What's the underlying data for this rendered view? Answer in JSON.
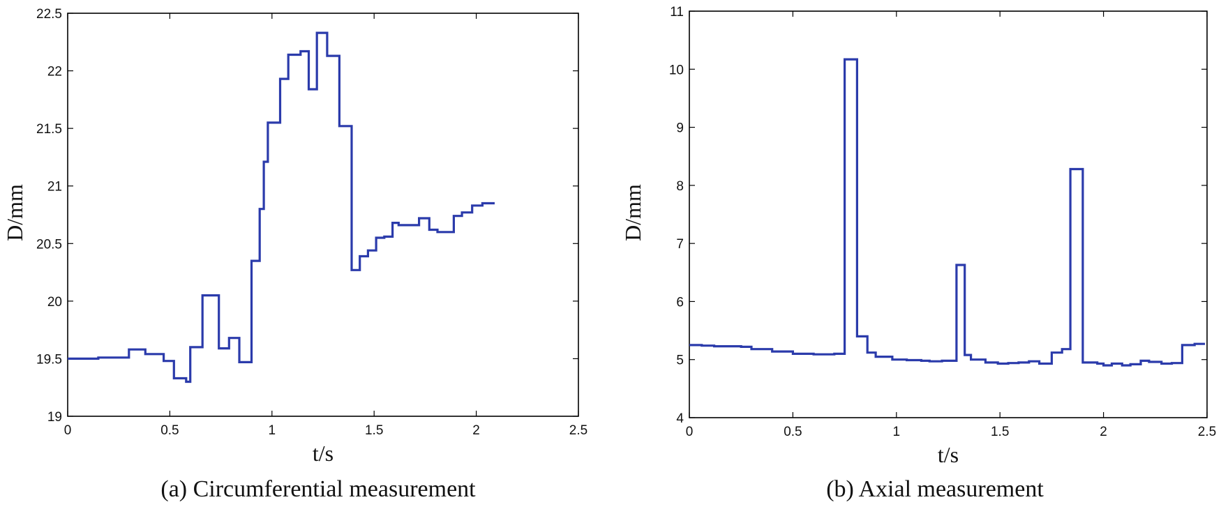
{
  "chart_data": [
    {
      "type": "line",
      "step": true,
      "caption": "(a) Circumferential measurement",
      "xlabel": "t/s",
      "ylabel": "D/mm",
      "xlim": [
        0,
        2.5
      ],
      "ylim": [
        19,
        22.5
      ],
      "xticks": [
        0,
        0.5,
        1,
        1.5,
        2,
        2.5
      ],
      "xtick_labels": [
        "0",
        "0.5",
        "1",
        "1.5",
        "2",
        "2.5"
      ],
      "yticks": [
        19,
        19.5,
        20,
        20.5,
        21,
        21.5,
        22,
        22.5
      ],
      "ytick_labels": [
        "19",
        "19.5",
        "20",
        "20.5",
        "21",
        "21.5",
        "22",
        "22.5"
      ],
      "grid": false,
      "color": "#2b3bab",
      "series": [
        {
          "name": "D",
          "x": [
            0,
            0.1,
            0.15,
            0.3,
            0.38,
            0.42,
            0.47,
            0.52,
            0.55,
            0.58,
            0.6,
            0.64,
            0.66,
            0.69,
            0.74,
            0.79,
            0.84,
            0.88,
            0.9,
            0.93,
            0.94,
            0.96,
            0.98,
            1.02,
            1.04,
            1.06,
            1.08,
            1.14,
            1.18,
            1.22,
            1.27,
            1.32,
            1.33,
            1.38,
            1.39,
            1.41,
            1.43,
            1.47,
            1.51,
            1.55,
            1.59,
            1.62,
            1.67,
            1.72,
            1.75,
            1.77,
            1.81,
            1.86,
            1.89,
            1.91,
            1.93,
            1.98,
            2.03,
            2.08,
            2.09
          ],
          "y": [
            19.5,
            19.5,
            19.51,
            19.58,
            19.54,
            19.54,
            19.48,
            19.33,
            19.33,
            19.3,
            19.6,
            19.6,
            20.05,
            20.05,
            19.59,
            19.68,
            19.47,
            19.47,
            20.35,
            20.35,
            20.8,
            21.21,
            21.55,
            21.55,
            21.93,
            21.93,
            22.14,
            22.17,
            21.84,
            22.33,
            22.13,
            22.13,
            21.52,
            21.52,
            20.27,
            20.27,
            20.39,
            20.44,
            20.55,
            20.56,
            20.68,
            20.66,
            20.66,
            20.72,
            20.72,
            20.62,
            20.6,
            20.6,
            20.74,
            20.74,
            20.77,
            20.83,
            20.85,
            20.85,
            20.85
          ]
        }
      ]
    },
    {
      "type": "line",
      "step": true,
      "caption": "(b) Axial measurement",
      "xlabel": "t/s",
      "ylabel": "D/mm",
      "xlim": [
        0,
        2.5
      ],
      "ylim": [
        4,
        11
      ],
      "xticks": [
        0,
        0.5,
        1,
        1.5,
        2,
        2.5
      ],
      "xtick_labels": [
        "0",
        "0.5",
        "1",
        "1.5",
        "2",
        "2.5"
      ],
      "yticks": [
        4,
        5,
        6,
        7,
        8,
        9,
        10,
        11
      ],
      "ytick_labels": [
        "4",
        "5",
        "6",
        "7",
        "8",
        "9",
        "10",
        "11"
      ],
      "grid": false,
      "color": "#2b3bab",
      "series": [
        {
          "name": "D",
          "x": [
            0,
            0.06,
            0.12,
            0.25,
            0.3,
            0.4,
            0.5,
            0.6,
            0.7,
            0.75,
            0.81,
            0.86,
            0.9,
            0.98,
            1.05,
            1.12,
            1.16,
            1.22,
            1.29,
            1.33,
            1.36,
            1.43,
            1.49,
            1.54,
            1.59,
            1.64,
            1.69,
            1.75,
            1.8,
            1.84,
            1.9,
            1.97,
            2,
            2.04,
            2.09,
            2.13,
            2.18,
            2.22,
            2.28,
            2.33,
            2.38,
            2.44,
            2.49
          ],
          "y": [
            5.25,
            5.24,
            5.23,
            5.22,
            5.18,
            5.14,
            5.1,
            5.09,
            5.1,
            10.17,
            5.4,
            5.12,
            5.05,
            5,
            4.99,
            4.98,
            4.97,
            4.98,
            6.63,
            5.08,
            5,
            4.95,
            4.93,
            4.94,
            4.95,
            4.97,
            4.93,
            5.12,
            5.18,
            8.28,
            4.95,
            4.93,
            4.9,
            4.93,
            4.9,
            4.92,
            4.98,
            4.96,
            4.93,
            4.94,
            5.25,
            5.27,
            5.27
          ]
        }
      ]
    }
  ]
}
